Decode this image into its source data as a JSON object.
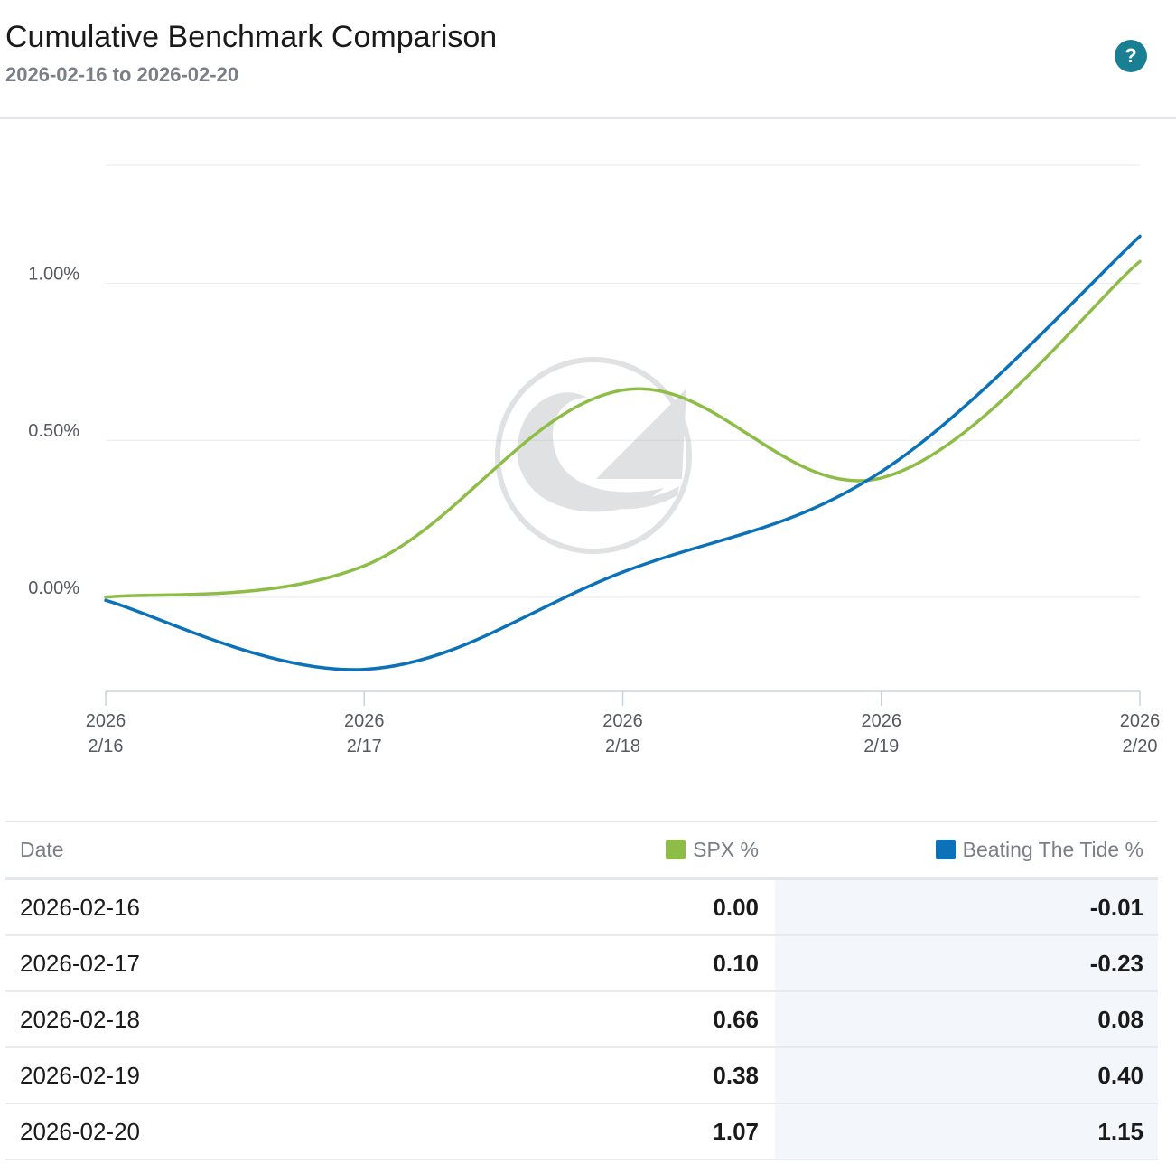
{
  "header": {
    "title": "Cumulative Benchmark Comparison",
    "subtitle": "2026-02-16 to 2026-02-20",
    "help_label": "?"
  },
  "colors": {
    "spx": "#8dbd47",
    "btt": "#0b72b9",
    "accent": "#1b7f93"
  },
  "chart_data": {
    "type": "line",
    "title": "",
    "xlabel": "",
    "ylabel": "",
    "x": [
      "2026-02-16",
      "2026-02-17",
      "2026-02-18",
      "2026-02-19",
      "2026-02-20"
    ],
    "x_tick_labels": [
      {
        "year": "2026",
        "day": "2/16"
      },
      {
        "year": "2026",
        "day": "2/17"
      },
      {
        "year": "2026",
        "day": "2/18"
      },
      {
        "year": "2026",
        "day": "2/19"
      },
      {
        "year": "2026",
        "day": "2/20"
      }
    ],
    "y_ticks": [
      0.0,
      0.5,
      1.0
    ],
    "y_tick_labels": [
      "0.00%",
      "0.50%",
      "1.00%"
    ],
    "ylim": [
      -0.3,
      1.5
    ],
    "grid": true,
    "series": [
      {
        "name": "SPX %",
        "color": "#8dbd47",
        "values": [
          0.0,
          0.1,
          0.66,
          0.38,
          1.07
        ]
      },
      {
        "name": "Beating The Tide %",
        "color": "#0b72b9",
        "values": [
          -0.01,
          -0.23,
          0.08,
          0.4,
          1.15
        ]
      }
    ]
  },
  "table": {
    "headers": {
      "date": "Date",
      "spx": "SPX %",
      "btt": "Beating The Tide %"
    },
    "rows": [
      {
        "date": "2026-02-16",
        "spx": "0.00",
        "btt": "-0.01"
      },
      {
        "date": "2026-02-17",
        "spx": "0.10",
        "btt": "-0.23"
      },
      {
        "date": "2026-02-18",
        "spx": "0.66",
        "btt": "0.08"
      },
      {
        "date": "2026-02-19",
        "spx": "0.38",
        "btt": "0.40"
      },
      {
        "date": "2026-02-20",
        "spx": "1.07",
        "btt": "1.15"
      }
    ]
  }
}
